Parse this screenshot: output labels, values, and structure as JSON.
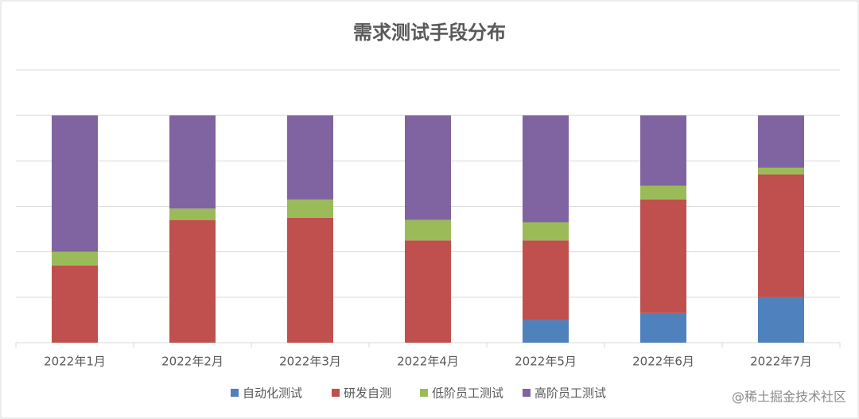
{
  "chart_data": {
    "type": "stacked-bar",
    "title": "需求测试手段分布",
    "categories": [
      "2022年1月",
      "2022年2月",
      "2022年3月",
      "2022年4月",
      "2022年5月",
      "2022年6月",
      "2022年7月"
    ],
    "series": [
      {
        "name": "自动化测试",
        "color": "#4f81bd",
        "values": [
          0,
          0,
          0,
          0,
          10,
          13,
          20
        ]
      },
      {
        "name": "研发自测",
        "color": "#c0504d",
        "values": [
          34,
          54,
          55,
          45,
          35,
          50,
          54
        ]
      },
      {
        "name": "低阶员工测试",
        "color": "#9bbb59",
        "values": [
          6,
          5,
          8,
          9,
          8,
          6,
          3
        ]
      },
      {
        "name": "高阶员工测试",
        "color": "#8064a2",
        "values": [
          60,
          41,
          37,
          46,
          47,
          31,
          23
        ]
      }
    ],
    "ylim": [
      0,
      120
    ],
    "yticks": [
      0,
      20,
      40,
      60,
      80,
      100,
      120
    ],
    "grid": true,
    "legend": "bottom"
  },
  "watermark": "@稀土掘金技术社区"
}
